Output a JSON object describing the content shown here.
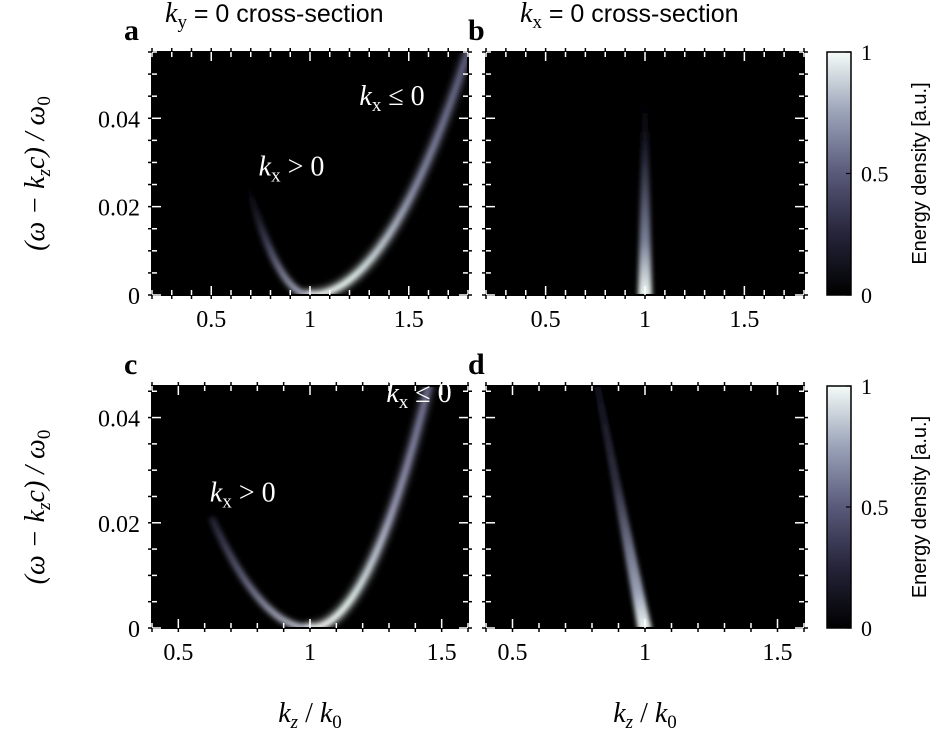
{
  "chart_data": [
    {
      "panel": "a",
      "type": "heatmap",
      "title_prefix": "k",
      "title_sub": "y",
      "title_suffix": " = 0 cross-section",
      "xlim": [
        0.2,
        1.8
      ],
      "ylim": [
        0,
        0.055
      ],
      "xticks": [
        "0.5",
        "1",
        "1.5"
      ],
      "xtick_values": [
        0.5,
        1,
        1.5
      ],
      "yticks": [
        "0",
        "0.02",
        "0.04"
      ],
      "ytick_values": [
        0,
        0.02,
        0.04
      ],
      "ylabel": "(ω − kzc) / ω0",
      "curve": {
        "vertex": [
          1,
          0
        ],
        "left": {
          "k_end": 0.68,
          "a": 0.25
        },
        "right": {
          "k_end": 1.8,
          "a": 0.086
        }
      },
      "annotations": [
        {
          "main": "k",
          "sub": "x",
          "rel": " > 0",
          "x": 0.74,
          "y": 0.027
        },
        {
          "main": "k",
          "sub": "x",
          "rel": " ≤ 0",
          "x": 1.25,
          "y": 0.043
        }
      ]
    },
    {
      "panel": "b",
      "type": "heatmap",
      "title_prefix": "k",
      "title_sub": "x",
      "title_suffix": " = 0 cross-section",
      "xlim": [
        0.2,
        1.8
      ],
      "ylim": [
        0,
        0.055
      ],
      "xticks": [
        "0.5",
        "1",
        "1.5"
      ],
      "xtick_values": [
        0.5,
        1,
        1.5
      ],
      "yticks": [],
      "ytick_values": [
        0,
        0.02,
        0.04
      ],
      "streak": {
        "bottom_k": 1.0,
        "top_k": 1.0,
        "top_y": 0.048
      }
    },
    {
      "panel": "c",
      "type": "heatmap",
      "xlim": [
        0.4,
        1.6
      ],
      "ylim": [
        0,
        0.046
      ],
      "xticks": [
        "0.5",
        "1",
        "1.5"
      ],
      "xtick_values": [
        0.5,
        1,
        1.5
      ],
      "yticks": [
        "0",
        "0.02",
        "0.04"
      ],
      "ytick_values": [
        0,
        0.02,
        0.04
      ],
      "xlabel": "kz / k0",
      "ylabel": "(ω − kzc) / ω0",
      "curve": {
        "vertex": [
          1,
          0
        ],
        "left": {
          "k_end": 0.63,
          "a": 0.15
        },
        "right": {
          "k_end": 1.45,
          "a": 0.227
        }
      },
      "annotations": [
        {
          "main": "k",
          "sub": "x",
          "rel": " > 0",
          "x": 0.62,
          "y": 0.024
        },
        {
          "main": "k",
          "sub": "x",
          "rel": " ≤ 0",
          "x": 1.29,
          "y": 0.043
        }
      ]
    },
    {
      "panel": "d",
      "type": "heatmap",
      "xlim": [
        0.4,
        1.6
      ],
      "ylim": [
        0,
        0.046
      ],
      "xticks": [
        "0.5",
        "1",
        "1.5"
      ],
      "xtick_values": [
        0.5,
        1,
        1.5
      ],
      "yticks": [],
      "ytick_values": [
        0,
        0.02,
        0.04
      ],
      "xlabel": "kz / k0",
      "streak": {
        "bottom_k": 1.0,
        "top_k": 0.82,
        "top_y": 0.046
      }
    }
  ],
  "colorbars": [
    {
      "label": "Energy density [a.u.]",
      "ticks": [
        "1",
        "0.5",
        "0"
      ],
      "tick_values": [
        1,
        0.5,
        0
      ]
    },
    {
      "label": "Energy density [a.u.]",
      "ticks": [
        "1",
        "0.5",
        "0"
      ],
      "tick_values": [
        1,
        0.5,
        0
      ]
    }
  ],
  "colors": {
    "background": "#000000",
    "low": "#1b1a2a",
    "mid": "#8a8aa8",
    "high": "#eaf6f2"
  }
}
